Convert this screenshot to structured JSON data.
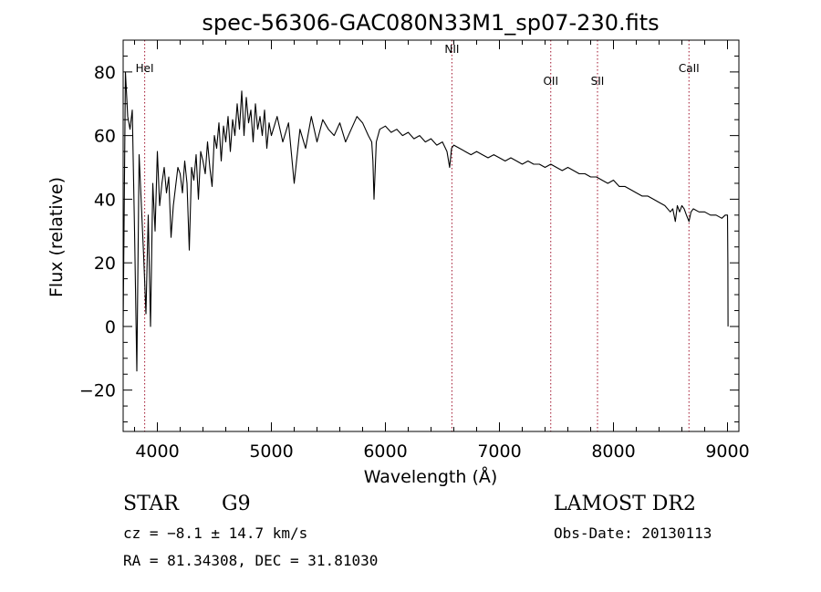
{
  "chart_data": {
    "type": "line",
    "title": "spec-56306-GAC080N33M1_sp07-230.fits",
    "xlabel": "Wavelength (Å)",
    "ylabel": "Flux (relative)",
    "xlim": [
      3700,
      9100
    ],
    "ylim": [
      -33,
      90
    ],
    "xticks": [
      4000,
      5000,
      6000,
      7000,
      8000,
      9000
    ],
    "xtick_labels": [
      "4000",
      "5000",
      "6000",
      "7000",
      "8000",
      "9000"
    ],
    "yticks": [
      -20,
      0,
      20,
      40,
      60,
      80
    ],
    "ytick_labels": [
      "−20",
      "0",
      "20",
      "40",
      "60",
      "80"
    ],
    "grid": false,
    "series": [
      {
        "name": "spectrum",
        "x": [
          3700,
          3720,
          3740,
          3760,
          3780,
          3800,
          3820,
          3840,
          3860,
          3880,
          3900,
          3920,
          3940,
          3960,
          3980,
          4000,
          4020,
          4040,
          4060,
          4080,
          4100,
          4120,
          4140,
          4160,
          4180,
          4200,
          4220,
          4240,
          4260,
          4280,
          4300,
          4320,
          4340,
          4360,
          4380,
          4400,
          4420,
          4440,
          4460,
          4480,
          4500,
          4520,
          4540,
          4560,
          4580,
          4600,
          4620,
          4640,
          4660,
          4680,
          4700,
          4720,
          4740,
          4760,
          4780,
          4800,
          4820,
          4840,
          4860,
          4880,
          4900,
          4920,
          4940,
          4960,
          4980,
          5000,
          5050,
          5100,
          5150,
          5200,
          5250,
          5300,
          5350,
          5400,
          5450,
          5500,
          5550,
          5600,
          5650,
          5700,
          5750,
          5800,
          5850,
          5880,
          5890,
          5900,
          5920,
          5950,
          6000,
          6050,
          6100,
          6150,
          6200,
          6250,
          6300,
          6350,
          6400,
          6450,
          6500,
          6540,
          6563,
          6580,
          6600,
          6650,
          6700,
          6750,
          6800,
          6850,
          6900,
          6950,
          7000,
          7050,
          7100,
          7150,
          7200,
          7250,
          7300,
          7350,
          7400,
          7450,
          7500,
          7550,
          7600,
          7650,
          7700,
          7750,
          7800,
          7850,
          7900,
          7950,
          8000,
          8050,
          8100,
          8150,
          8200,
          8250,
          8300,
          8350,
          8400,
          8450,
          8498,
          8520,
          8542,
          8560,
          8580,
          8600,
          8620,
          8640,
          8662,
          8680,
          8700,
          8750,
          8800,
          8850,
          8900,
          8950,
          8980,
          9000,
          9003,
          9005
        ],
        "y": [
          0,
          80,
          66,
          62,
          68,
          30,
          -14,
          54,
          38,
          22,
          4,
          35,
          0,
          45,
          30,
          55,
          38,
          45,
          50,
          42,
          47,
          28,
          38,
          44,
          50,
          48,
          42,
          52,
          45,
          24,
          50,
          46,
          54,
          40,
          55,
          52,
          48,
          58,
          50,
          44,
          60,
          56,
          64,
          52,
          63,
          58,
          66,
          55,
          65,
          60,
          70,
          62,
          74,
          60,
          72,
          64,
          68,
          58,
          70,
          62,
          66,
          60,
          68,
          56,
          64,
          60,
          66,
          58,
          64,
          45,
          62,
          56,
          66,
          58,
          65,
          62,
          60,
          64,
          58,
          62,
          66,
          64,
          60,
          58,
          52,
          40,
          58,
          62,
          63,
          61,
          62,
          60,
          61,
          59,
          60,
          58,
          59,
          57,
          58,
          55,
          50,
          56,
          57,
          56,
          55,
          54,
          55,
          54,
          53,
          54,
          53,
          52,
          53,
          52,
          51,
          52,
          51,
          51,
          50,
          51,
          50,
          49,
          50,
          49,
          48,
          48,
          47,
          47,
          46,
          45,
          46,
          44,
          44,
          43,
          42,
          41,
          41,
          40,
          39,
          38,
          36,
          37,
          33,
          38,
          36,
          38,
          37,
          35,
          33,
          36,
          37,
          36,
          36,
          35,
          35,
          34,
          35,
          35,
          20,
          0
        ],
        "color": "#000000"
      }
    ],
    "lines": [
      {
        "label": "HeI",
        "x": 3889,
        "label_y": 80
      },
      {
        "label": "NII",
        "x": 6583,
        "label_y": 86
      },
      {
        "label": "OII",
        "x": 7450,
        "label_y": 76
      },
      {
        "label": "SII",
        "x": 7860,
        "label_y": 76
      },
      {
        "label": "CaII",
        "x": 8662,
        "label_y": 80
      }
    ],
    "line_color": "#a0102a"
  },
  "info": {
    "object_type": "STAR",
    "subclass": "G9",
    "survey": "LAMOST DR2",
    "cz_line": "cz = −8.1 ± 14.7 km/s",
    "coords_line": "RA =  81.34308, DEC =  31.81030",
    "obs_date": "Obs-Date: 20130113"
  }
}
